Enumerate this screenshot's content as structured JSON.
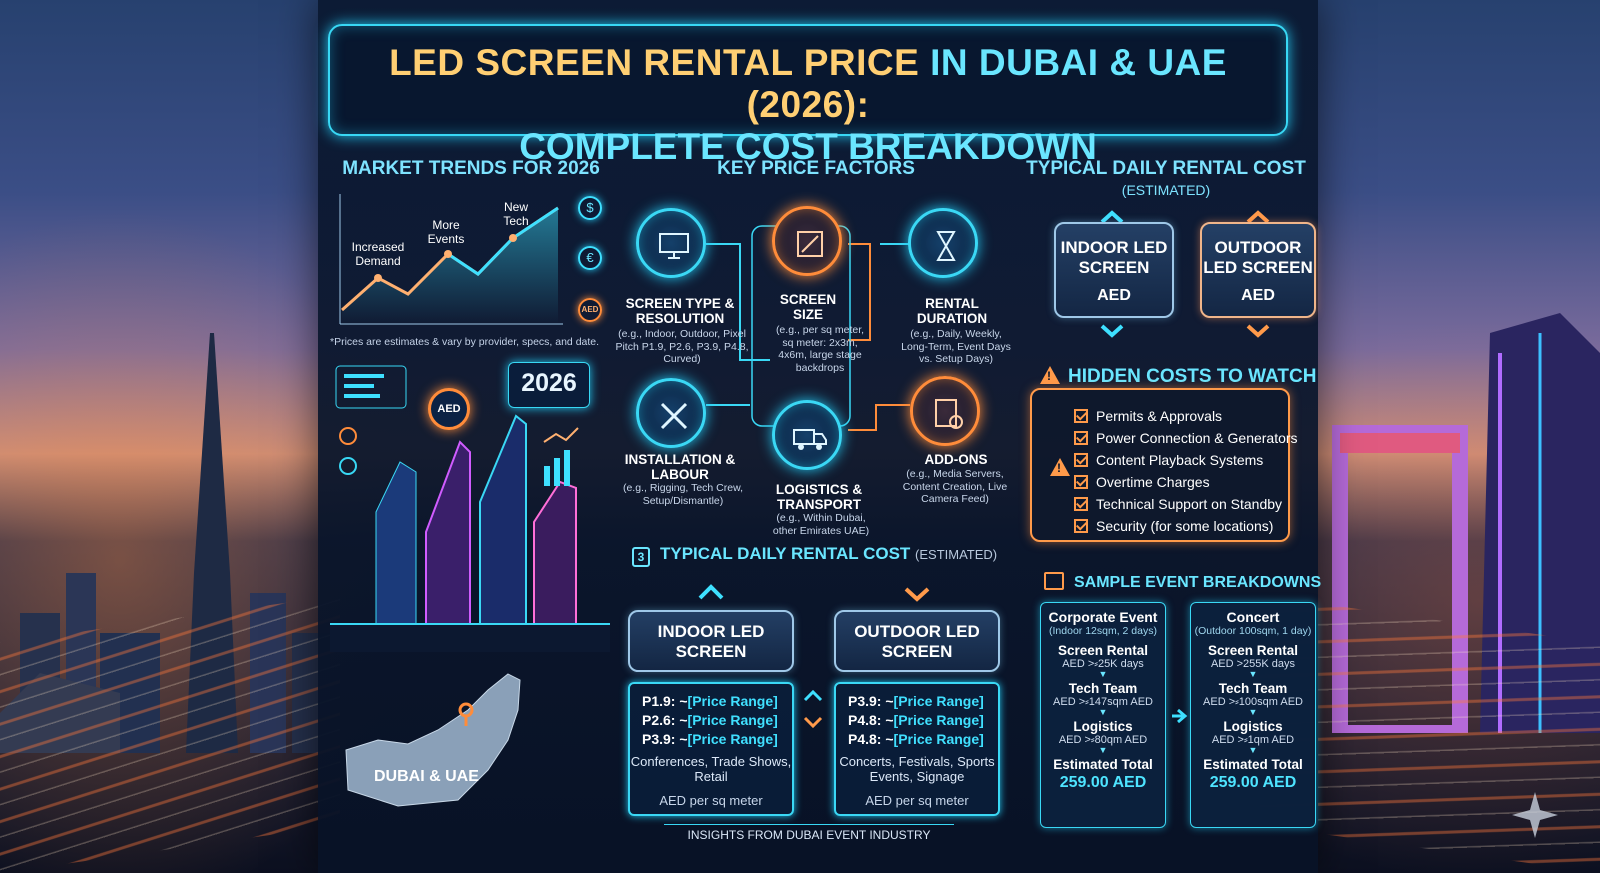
{
  "title": {
    "part1": "LED SCREEN RENTAL PRICE",
    "part2": "IN DUBAI & UAE",
    "part3": "(2026):",
    "line2": "COMPLETE COST BREAKDOWN"
  },
  "market": {
    "heading": "MARKET TRENDS FOR 2026",
    "labels": [
      "Increased Demand",
      "More Events",
      "New Tech"
    ],
    "note": "*Prices are estimates & vary by provider, specs, and date.",
    "coins": [
      "$",
      "€",
      "AED"
    ],
    "year_badge": "2026",
    "aed_badge": "AED"
  },
  "map": {
    "label": "DUBAI & UAE"
  },
  "factors": {
    "heading": "KEY PRICE FACTORS",
    "items": [
      {
        "title": "SCREEN TYPE & RESOLUTION",
        "desc": "(e.g., Indoor, Outdoor, Pixel Pitch P1.9, P2.6, P3.9, P4.8, Curved)"
      },
      {
        "title": "SCREEN SIZE",
        "desc": "(e.g., per sq meter, sq meter: 2x3m, 4x6m, large stage backdrops"
      },
      {
        "title": "RENTAL DURATION",
        "desc": "(e.g., Daily, Weekly, Long-Term, Event Days vs. Setup Days)"
      },
      {
        "title": "INSTALLATION & LABOUR",
        "desc": "(e.g., Rigging, Tech Crew, Setup/Dismantle)"
      },
      {
        "title": "LOGISTICS & TRANSPORT",
        "desc": "(e.g., Within Dubai, other Emirates UAE)"
      },
      {
        "title": "ADD-ONS",
        "desc": "(e.g., Media Servers, Content Creation, Live Camera Feed)"
      }
    ]
  },
  "daily_top": {
    "heading": "TYPICAL DAILY RENTAL COST",
    "sub": "(ESTIMATED)",
    "indoor": "INDOOR LED SCREEN",
    "outdoor": "OUTDOOR LED SCREEN",
    "aed": "AED"
  },
  "daily_mid": {
    "heading": "TYPICAL DAILY RENTAL COST",
    "sub": "(ESTIMATED)",
    "icon": "3",
    "indoor": {
      "title": "INDOOR LED SCREEN",
      "rows": [
        [
          "P1.9: ~",
          "[Price Range]"
        ],
        [
          "P2.6: ~",
          "[Price Range]"
        ],
        [
          "P3.9: ~",
          "[Price Range]"
        ]
      ],
      "use": "Conferences, Trade Shows, Retail",
      "unit": "AED per sq meter"
    },
    "outdoor": {
      "title": "OUTDOOR LED SCREEN",
      "rows": [
        [
          "P3.9: ~",
          "[Price Range]"
        ],
        [
          "P4.8: ~",
          "[Price Range]"
        ],
        [
          "P4.8: ~",
          "[Price Range]"
        ]
      ],
      "use": "Concerts, Festivals, Sports Events, Signage",
      "unit": "AED per sq meter"
    }
  },
  "hidden": {
    "heading": "HIDDEN COSTS TO WATCH",
    "items": [
      "Permits & Approvals",
      "Power Connection & Generators",
      "Content Playback Systems",
      "Overtime Charges",
      "Technical Support on Standby",
      "Security (for some locations)"
    ]
  },
  "samples": {
    "heading": "SAMPLE EVENT BREAKDOWNS",
    "events": [
      {
        "name": "Corporate Event",
        "spec": "(Indoor 12sqm, 2 days)",
        "lines": [
          [
            "Screen Rental",
            "AED >⸗25K days"
          ],
          [
            "Tech Team",
            "AED >⸗147sqm AED"
          ],
          [
            "Logistics",
            "AED >⸗80qm AED"
          ]
        ],
        "total_label": "Estimated Total",
        "total": "259.00 AED"
      },
      {
        "name": "Concert",
        "spec": "(Outdoor 100sqm, 1 day)",
        "lines": [
          [
            "Screen Rental",
            "AED >255K days"
          ],
          [
            "Tech Team",
            "AED >⸗100sqm AED"
          ],
          [
            "Logistics",
            "AED >⸗1qm AED"
          ]
        ],
        "total_label": "Estimated Total",
        "total": "259.00 AED"
      }
    ]
  },
  "footer": "INSIGHTS FROM DUBAI EVENT INDUSTRY",
  "colors": {
    "cyan": "#38d8f5",
    "orange": "#ff8c3a",
    "title_gold": "#ffcf73"
  }
}
